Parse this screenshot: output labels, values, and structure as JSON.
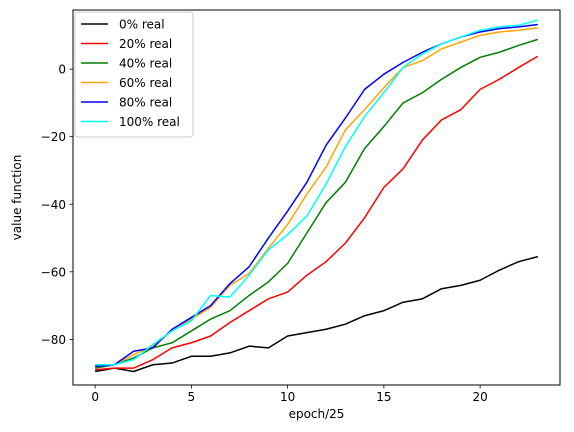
{
  "chart_data": {
    "type": "line",
    "title": "",
    "xlabel": "epoch/25",
    "ylabel": "value function",
    "xlim": [
      -1.15,
      24.15
    ],
    "ylim": [
      -93.5,
      17.5
    ],
    "x_ticks": [
      0,
      5,
      10,
      15,
      20
    ],
    "y_ticks": [
      -80,
      -60,
      -40,
      -20,
      0
    ],
    "grid": false,
    "legend_position": "upper-left",
    "x": [
      0,
      1,
      2,
      3,
      4,
      5,
      6,
      7,
      8,
      9,
      10,
      11,
      12,
      13,
      14,
      15,
      16,
      17,
      18,
      19,
      20,
      21,
      22,
      23
    ],
    "series": [
      {
        "name": "0% real",
        "color": "#000000",
        "values": [
          -89.5,
          -88.5,
          -89.5,
          -87.5,
          -87,
          -85,
          -85,
          -84,
          -82,
          -82.5,
          -79,
          -78,
          -77,
          -75.5,
          -73,
          -71.5,
          -69,
          -68,
          -65,
          -64,
          -62.5,
          -59.5,
          -57,
          -55.5
        ]
      },
      {
        "name": "20% real",
        "color": "#ff0000",
        "values": [
          -89,
          -88.5,
          -88.5,
          -86,
          -82.5,
          -81,
          -79,
          -75,
          -71.5,
          -68,
          -66,
          -61,
          -57,
          -51.5,
          -44,
          -35,
          -29.5,
          -21,
          -15,
          -12,
          -6,
          -3,
          0.5,
          3.8
        ]
      },
      {
        "name": "40% real",
        "color": "#008000",
        "values": [
          -88.5,
          -87.5,
          -85.5,
          -82.5,
          -81,
          -77.5,
          -74,
          -71.5,
          -67,
          -63,
          -57.5,
          -48.5,
          -39.5,
          -33.5,
          -23.5,
          -17,
          -10,
          -7,
          -3,
          0.5,
          3.5,
          5,
          7,
          8.8
        ]
      },
      {
        "name": "60% real",
        "color": "#ffa500",
        "values": [
          -88,
          -87.5,
          -84.5,
          -82,
          -77.5,
          -74,
          -70.5,
          -64,
          -60.5,
          -53,
          -46,
          -37,
          -29,
          -18,
          -12,
          -5.5,
          0.5,
          2.5,
          6,
          8,
          10,
          11,
          11.5,
          12.2
        ]
      },
      {
        "name": "80% real",
        "color": "#0000ff",
        "values": [
          -88,
          -87.5,
          -83.5,
          -82.5,
          -77,
          -73.5,
          -70,
          -63.5,
          -58.5,
          -50,
          -42,
          -33.5,
          -22.5,
          -14.5,
          -6,
          -1.5,
          2,
          5,
          7.5,
          9.5,
          11,
          12,
          12.5,
          13.2
        ]
      },
      {
        "name": "100% real",
        "color": "#00ffff",
        "values": [
          -87.5,
          -87.5,
          -86,
          -81.5,
          -77.5,
          -74.5,
          -67,
          -67.5,
          -61,
          -53.5,
          -49,
          -43.5,
          -34,
          -23,
          -14,
          -7,
          0.5,
          4.5,
          7.5,
          9.5,
          11.5,
          12.5,
          13,
          14.5
        ]
      }
    ]
  }
}
